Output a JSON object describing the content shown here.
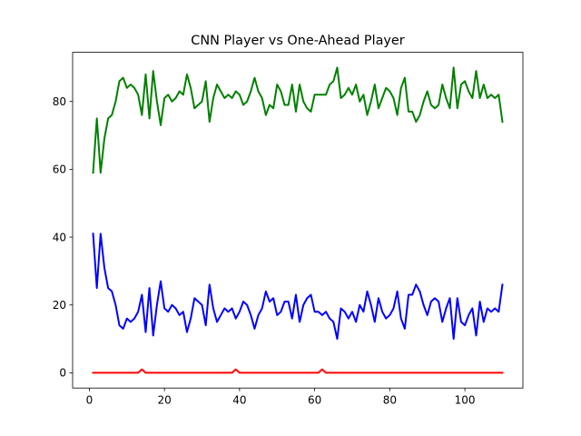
{
  "chart_data": {
    "type": "line",
    "title": "CNN Player vs One-Ahead Player",
    "xlabel": "",
    "ylabel": "",
    "xlim": [
      -4.45,
      115.45
    ],
    "ylim": [
      -4.5,
      94.5
    ],
    "x_ticks": [
      0,
      20,
      40,
      60,
      80,
      100
    ],
    "y_ticks": [
      0,
      20,
      40,
      60,
      80
    ],
    "grid": false,
    "legend": "none",
    "x": [
      1,
      2,
      3,
      4,
      5,
      6,
      7,
      8,
      9,
      10,
      11,
      12,
      13,
      14,
      15,
      16,
      17,
      18,
      19,
      20,
      21,
      22,
      23,
      24,
      25,
      26,
      27,
      28,
      29,
      30,
      31,
      32,
      33,
      34,
      35,
      36,
      37,
      38,
      39,
      40,
      41,
      42,
      43,
      44,
      45,
      46,
      47,
      48,
      49,
      50,
      51,
      52,
      53,
      54,
      55,
      56,
      57,
      58,
      59,
      60,
      61,
      62,
      63,
      64,
      65,
      66,
      67,
      68,
      69,
      70,
      71,
      72,
      73,
      74,
      75,
      76,
      77,
      78,
      79,
      80,
      81,
      82,
      83,
      84,
      85,
      86,
      87,
      88,
      89,
      90,
      91,
      92,
      93,
      94,
      95,
      96,
      97,
      98,
      99,
      100,
      101,
      102,
      103,
      104,
      105,
      106,
      107,
      108,
      109,
      110
    ],
    "series": [
      {
        "color": "#008000",
        "values": [
          59,
          75,
          59,
          69,
          75,
          76,
          80,
          86,
          87,
          84,
          85,
          84,
          82,
          76,
          88,
          75,
          89,
          80,
          73,
          81,
          82,
          80,
          81,
          83,
          82,
          88,
          84,
          78,
          79,
          80,
          86,
          74,
          81,
          85,
          83,
          81,
          82,
          81,
          83,
          82,
          79,
          80,
          83,
          87,
          83,
          81,
          76,
          79,
          78,
          85,
          83,
          79,
          79,
          85,
          77,
          85,
          80,
          78,
          77,
          82,
          82,
          82,
          82,
          85,
          86,
          90,
          81,
          82,
          84,
          82,
          85,
          80,
          82,
          76,
          80,
          85,
          78,
          81,
          84,
          83,
          81,
          76,
          84,
          87,
          77,
          77,
          74,
          76,
          80,
          83,
          79,
          78,
          79,
          85,
          81,
          78,
          90,
          78,
          85,
          86,
          83,
          81,
          89,
          81,
          85,
          81,
          82,
          81,
          82,
          74
        ]
      },
      {
        "color": "#0000ff",
        "values": [
          41,
          25,
          41,
          31,
          25,
          24,
          20,
          14,
          13,
          16,
          15,
          16,
          18,
          23,
          12,
          25,
          11,
          20,
          27,
          19,
          18,
          20,
          19,
          17,
          18,
          12,
          16,
          22,
          21,
          20,
          14,
          26,
          19,
          15,
          17,
          19,
          18,
          19,
          16,
          18,
          21,
          20,
          17,
          13,
          17,
          19,
          24,
          21,
          22,
          17,
          18,
          21,
          21,
          16,
          23,
          15,
          20,
          22,
          23,
          18,
          18,
          17,
          18,
          16,
          15,
          10,
          19,
          18,
          16,
          18,
          15,
          20,
          18,
          24,
          20,
          15,
          22,
          18,
          16,
          17,
          19,
          24,
          16,
          13,
          23,
          23,
          26,
          24,
          20,
          17,
          21,
          22,
          21,
          15,
          19,
          22,
          10,
          22,
          15,
          14,
          17,
          19,
          11,
          21,
          15,
          19,
          18,
          19,
          18,
          26
        ]
      },
      {
        "color": "#ff0000",
        "values": [
          0,
          0,
          0,
          0,
          0,
          0,
          0,
          0,
          0,
          0,
          0,
          0,
          0,
          1,
          0,
          0,
          0,
          0,
          0,
          0,
          0,
          0,
          0,
          0,
          0,
          0,
          0,
          0,
          0,
          0,
          0,
          0,
          0,
          0,
          0,
          0,
          0,
          0,
          1,
          0,
          0,
          0,
          0,
          0,
          0,
          0,
          0,
          0,
          0,
          0,
          0,
          0,
          0,
          0,
          0,
          0,
          0,
          0,
          0,
          0,
          0,
          1,
          0,
          0,
          0,
          0,
          0,
          0,
          0,
          0,
          0,
          0,
          0,
          0,
          0,
          0,
          0,
          0,
          0,
          0,
          0,
          0,
          0,
          0,
          0,
          0,
          0,
          0,
          0,
          0,
          0,
          0,
          0,
          0,
          0,
          0,
          0,
          0,
          0,
          0,
          0,
          0,
          0,
          0,
          0,
          0,
          0,
          0,
          0,
          0
        ]
      }
    ]
  }
}
